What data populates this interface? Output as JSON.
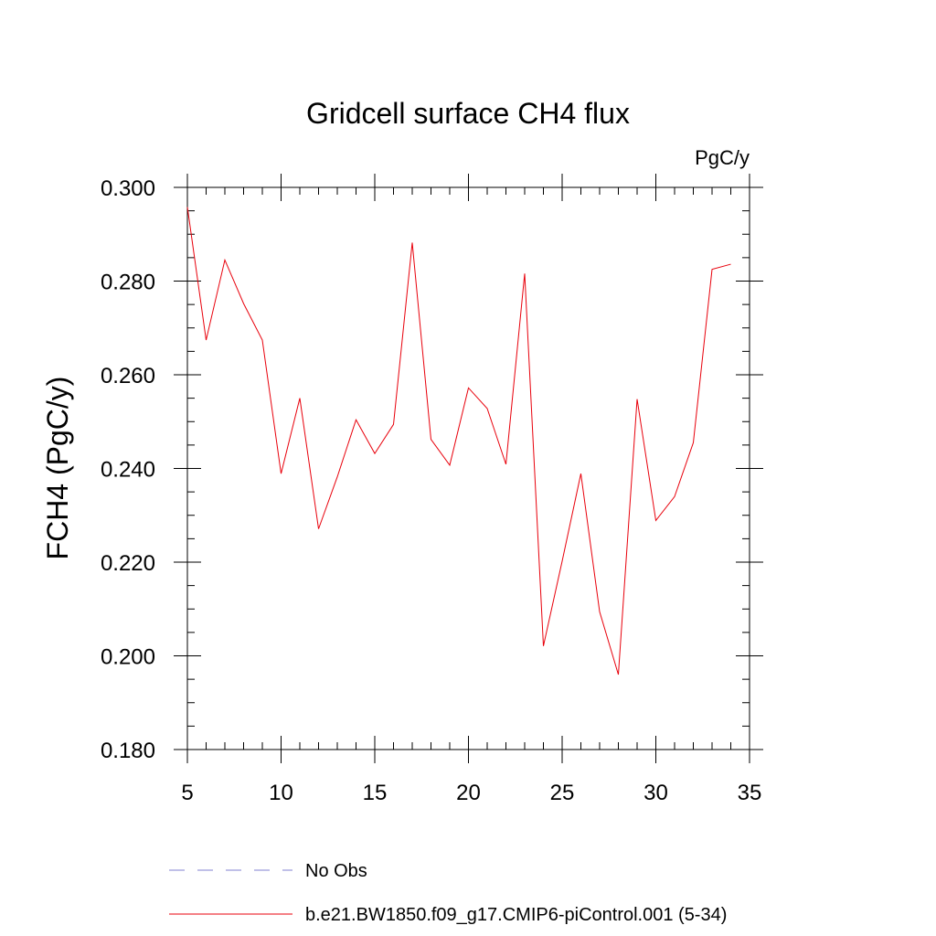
{
  "chart_data": {
    "type": "line",
    "title": "Gridcell surface CH4 flux",
    "units": "PgC/y",
    "ylabel": "FCH4  (PgC/y)",
    "xlabel": "",
    "xlim": [
      5,
      35
    ],
    "ylim": [
      0.18,
      0.3
    ],
    "x_ticks": [
      5,
      10,
      15,
      20,
      25,
      30,
      35
    ],
    "x_tick_labels": [
      "5",
      "10",
      "15",
      "20",
      "25",
      "30",
      "35"
    ],
    "y_ticks": [
      0.18,
      0.2,
      0.22,
      0.24,
      0.26,
      0.28,
      0.3
    ],
    "y_tick_labels": [
      "0.180",
      "0.200",
      "0.220",
      "0.240",
      "0.260",
      "0.280",
      "0.300"
    ],
    "x_minor_step": 1,
    "y_minor_step": 0.005,
    "grid": false,
    "legend_position": "bottom",
    "series": [
      {
        "name": "b.e21.BW1850.f09_g17.CMIP6-piControl.001 (5-34)",
        "color": "#e8000b",
        "style": "solid",
        "x": [
          5,
          6,
          7,
          8,
          9,
          10,
          11,
          12,
          13,
          14,
          15,
          16,
          17,
          18,
          19,
          20,
          21,
          22,
          23,
          24,
          25,
          26,
          27,
          28,
          29,
          30,
          31,
          32,
          33,
          34
        ],
        "y": [
          0.2958,
          0.2674,
          0.2845,
          0.2752,
          0.2674,
          0.2389,
          0.255,
          0.2271,
          0.2382,
          0.2504,
          0.2432,
          0.2494,
          0.2882,
          0.2462,
          0.2407,
          0.2572,
          0.2528,
          0.2409,
          0.2816,
          0.2021,
          0.2202,
          0.2389,
          0.2094,
          0.196,
          0.2548,
          0.2289,
          0.234,
          0.2455,
          0.2825,
          0.2836
        ]
      }
    ],
    "legend": [
      {
        "label": "No Obs",
        "color": "#8080d0",
        "style": "dashed"
      },
      {
        "label": "b.e21.BW1850.f09_g17.CMIP6-piControl.001 (5-34)",
        "color": "#e8000b",
        "style": "solid"
      }
    ]
  }
}
